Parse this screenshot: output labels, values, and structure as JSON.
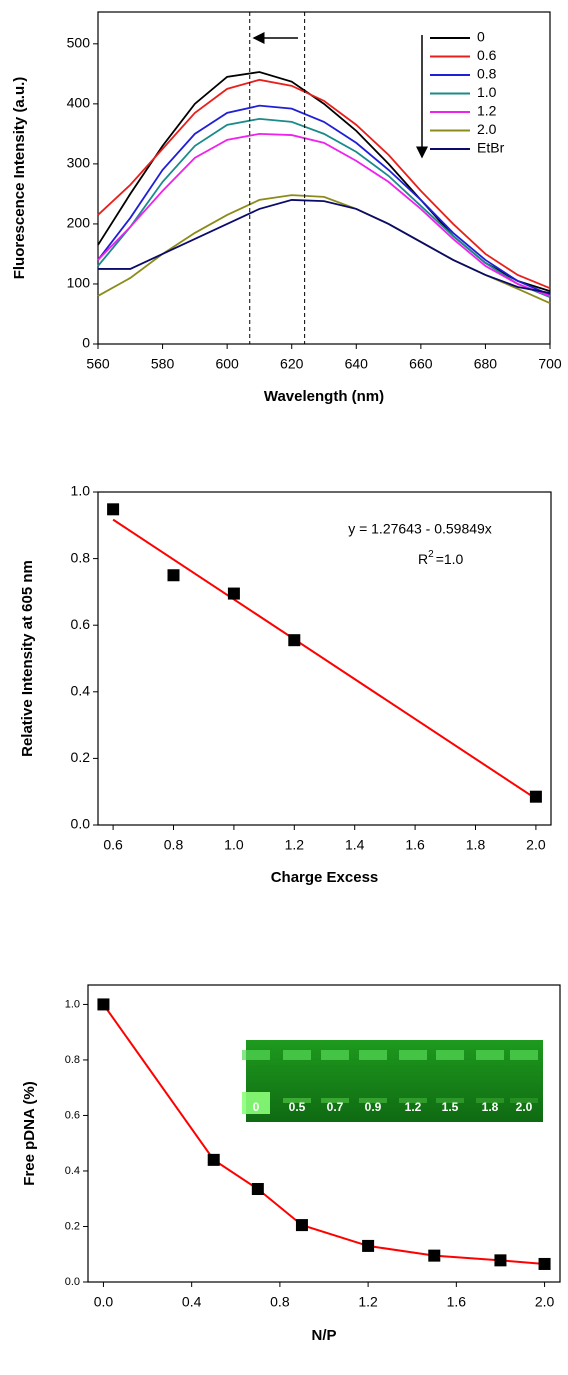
{
  "chart_data": [
    {
      "type": "line",
      "xlabel": "Wavelength (nm)",
      "ylabel": "Fluorescence Intensity (a.u.)",
      "x": [
        560,
        570,
        580,
        590,
        600,
        610,
        620,
        630,
        640,
        650,
        660,
        670,
        680,
        690,
        700
      ],
      "series": [
        {
          "name": "0",
          "color": "#000000",
          "values": [
            165,
            250,
            330,
            400,
            445,
            453,
            437,
            400,
            355,
            300,
            240,
            180,
            135,
            105,
            88
          ]
        },
        {
          "name": "0.6",
          "color": "#e8201c",
          "values": [
            215,
            265,
            325,
            385,
            425,
            440,
            430,
            405,
            365,
            315,
            255,
            200,
            150,
            115,
            93
          ]
        },
        {
          "name": "0.8",
          "color": "#1f1fd8",
          "values": [
            140,
            210,
            290,
            350,
            385,
            397,
            392,
            370,
            335,
            290,
            240,
            185,
            140,
            105,
            82
          ]
        },
        {
          "name": "1.0",
          "color": "#1a8a8a",
          "values": [
            130,
            195,
            270,
            330,
            365,
            375,
            370,
            350,
            320,
            280,
            230,
            180,
            135,
            100,
            78
          ]
        },
        {
          "name": "1.2",
          "color": "#ee22ee",
          "values": [
            140,
            195,
            255,
            310,
            340,
            350,
            348,
            335,
            305,
            270,
            225,
            175,
            130,
            100,
            80
          ]
        },
        {
          "name": "2.0",
          "color": "#8b8b1a",
          "values": [
            80,
            110,
            150,
            185,
            215,
            240,
            248,
            245,
            225,
            200,
            170,
            140,
            115,
            92,
            68
          ]
        },
        {
          "name": "EtBr",
          "color": "#0b0b6b",
          "values": [
            125,
            125,
            150,
            175,
            200,
            225,
            240,
            238,
            225,
            200,
            170,
            140,
            115,
            95,
            85
          ]
        }
      ],
      "reference_lines": [
        607,
        624
      ],
      "xlim": [
        560,
        700
      ],
      "xticks": [
        560,
        580,
        600,
        620,
        640,
        660,
        680,
        700
      ],
      "ylim": [
        0,
        553
      ],
      "yticks": [
        0,
        100,
        200,
        300,
        400,
        500
      ],
      "legend": "upper right"
    },
    {
      "type": "scatter",
      "xlabel": "Charge Excess",
      "ylabel": "Relative Intensity at 605 nm",
      "x": [
        0.6,
        0.8,
        1.0,
        1.2,
        2.0
      ],
      "values": [
        0.948,
        0.75,
        0.695,
        0.555,
        0.085
      ],
      "marker_color": "#000000",
      "fit": {
        "x": [
          0.6,
          2.0
        ],
        "values": [
          0.917,
          0.079
        ],
        "color": "#ff0000"
      },
      "equation": "y = 1.27643 - 0.59849x",
      "r2": {
        "text": "R",
        "sup": "2",
        "value": "=1.0"
      },
      "xlim": [
        0.55,
        2.05
      ],
      "xticks": [
        0.6,
        0.8,
        {
          "value": 1.0,
          "label": "1.0"
        },
        1.2,
        1.4,
        1.6,
        1.8,
        {
          "value": 2.0,
          "label": "2.0"
        }
      ],
      "ylim": [
        0,
        1.0
      ],
      "yticks": [
        {
          "value": 0,
          "label": "0.0"
        },
        0.2,
        0.4,
        0.6,
        0.8,
        {
          "value": 1.0,
          "label": "1.0"
        }
      ]
    },
    {
      "type": "line",
      "xlabel": "N/P",
      "ylabel": "Free pDNA (%)",
      "x": [
        0,
        0.5,
        0.7,
        0.9,
        1.2,
        1.5,
        1.8,
        2.0
      ],
      "values": [
        1.0,
        0.44,
        0.335,
        0.205,
        0.13,
        0.095,
        0.078,
        0.065
      ],
      "color": "#ff0000",
      "marker_color": "#000000",
      "inset_labels": [
        "0",
        "0.5",
        "0.7",
        "0.9",
        "1.2",
        "1.5",
        "1.8",
        "2.0"
      ],
      "xlim": [
        -0.07,
        2.07
      ],
      "xticks": [
        {
          "value": 0,
          "label": "0.0"
        },
        0.4,
        0.8,
        1.2,
        1.6,
        {
          "value": 2.0,
          "label": "2.0"
        }
      ],
      "ylim": [
        0,
        1.07
      ],
      "yticks": [
        {
          "value": 0,
          "label": "0.0"
        },
        0.2,
        0.4,
        0.6,
        0.8,
        {
          "value": 1.0,
          "label": "1.0"
        }
      ]
    }
  ]
}
